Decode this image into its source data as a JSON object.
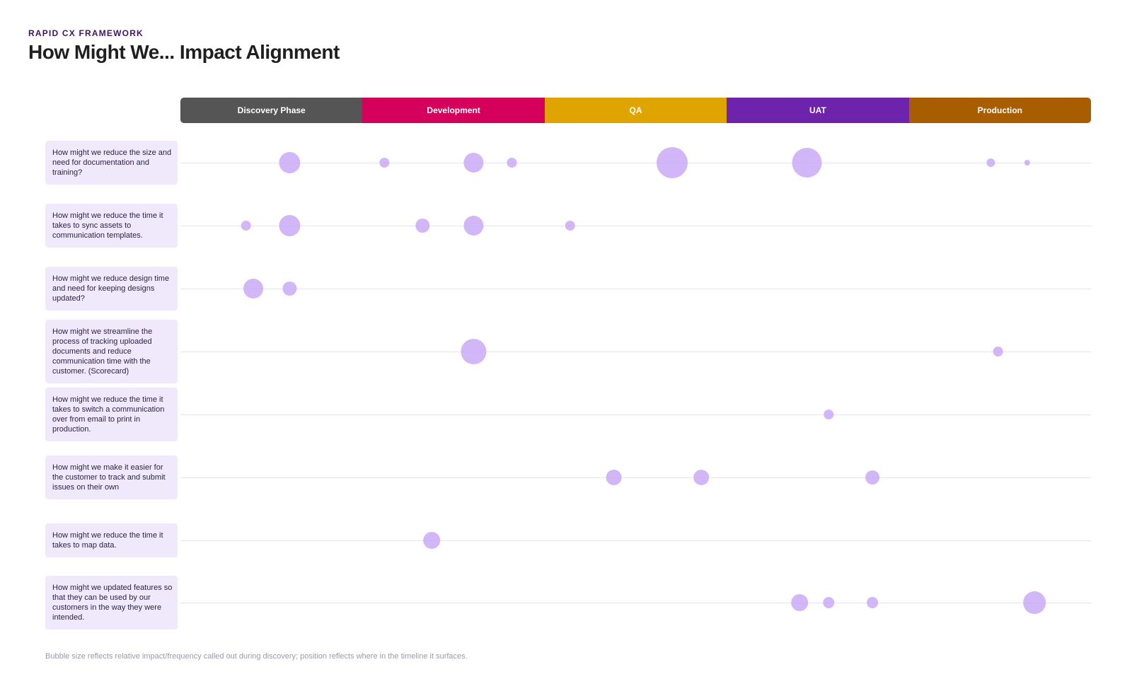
{
  "header": {
    "eyebrow": "RAPID CX FRAMEWORK",
    "title": "How Might We... Impact Alignment"
  },
  "colors": {
    "bubble": "#c9a9f7",
    "label_bg": "#efe9fb",
    "row_line": "#e6e3ef"
  },
  "phases": [
    {
      "label": "Discovery Phase",
      "color": "#555555"
    },
    {
      "label": "Development",
      "color": "#d4005b"
    },
    {
      "label": "QA",
      "color": "#e0a400"
    },
    {
      "label": "UAT",
      "color": "#6d23ab"
    },
    {
      "label": "Production",
      "color": "#a85d00"
    }
  ],
  "footnote": "Bubble size reflects relative impact/frequency called out during discovery; position reflects where in the timeline it surfaces.",
  "chart_data": {
    "type": "scatter",
    "x_axis": "phase timeline (0 = start of Discovery Phase, 5 = end of Production)",
    "xlim": [
      0,
      5
    ],
    "size_encoding": "relative impact / frequency",
    "categories": [
      "How might we reduce the size and need for documentation and training?",
      "How might we reduce the time it takes to sync assets to communication templates.",
      "How might we reduce design time and need for keeping designs updated?",
      "How might we streamline the process of tracking uploaded documents and reduce communication time with the customer. (Scorecard)",
      "How might we reduce the time it takes to switch a communication over from email to print in production.",
      "How might we make it easier for the customer to track and submit issues on their own",
      "How might we reduce the time it takes to map data.",
      "How might we updated features so that they can be used by our customers in the way they were intended."
    ],
    "series": [
      {
        "row": 0,
        "points": [
          [
            0.6,
            3
          ],
          [
            1.12,
            1.4
          ],
          [
            1.61,
            2.8
          ],
          [
            1.82,
            1.4
          ],
          [
            2.7,
            4.4
          ],
          [
            3.44,
            4.2
          ],
          [
            4.45,
            1.2
          ],
          [
            4.65,
            0.8
          ]
        ]
      },
      {
        "row": 1,
        "points": [
          [
            0.36,
            1.4
          ],
          [
            0.6,
            3
          ],
          [
            1.33,
            2
          ],
          [
            1.61,
            2.8
          ],
          [
            2.14,
            1.4
          ]
        ]
      },
      {
        "row": 2,
        "points": [
          [
            0.4,
            2.8
          ],
          [
            0.6,
            2
          ]
        ]
      },
      {
        "row": 3,
        "points": [
          [
            1.61,
            3.6
          ],
          [
            4.49,
            1.4
          ]
        ]
      },
      {
        "row": 4,
        "points": [
          [
            3.56,
            1.4
          ]
        ]
      },
      {
        "row": 5,
        "points": [
          [
            2.38,
            2.2
          ],
          [
            2.86,
            2.2
          ],
          [
            3.8,
            2
          ]
        ]
      },
      {
        "row": 6,
        "points": [
          [
            1.38,
            2.4
          ]
        ]
      },
      {
        "row": 7,
        "points": [
          [
            3.4,
            2.4
          ],
          [
            3.56,
            1.6
          ],
          [
            3.8,
            1.6
          ],
          [
            4.69,
            3.2
          ]
        ]
      }
    ]
  }
}
